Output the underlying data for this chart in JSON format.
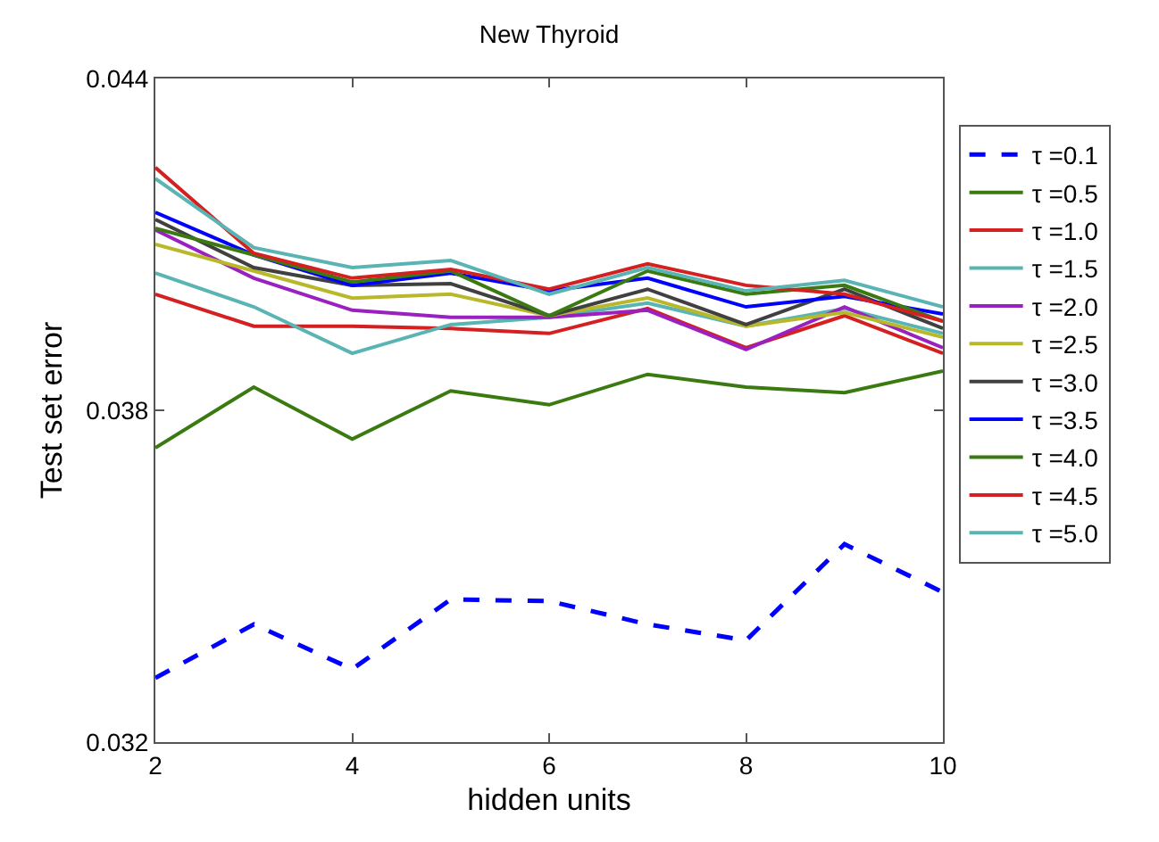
{
  "chart_data": {
    "type": "line",
    "title": "New Thyroid",
    "xlabel": "hidden units",
    "ylabel": "Test set error",
    "x": [
      2,
      3,
      4,
      5,
      6,
      7,
      8,
      9,
      10
    ],
    "xlim": [
      2,
      10
    ],
    "xticks": [
      2,
      4,
      6,
      8,
      10
    ],
    "ylim": [
      0.032,
      0.044
    ],
    "yticks": [
      0.032,
      0.038,
      0.044
    ],
    "legend": "right",
    "marker": "none",
    "series": [
      {
        "name": "τ =0.1",
        "color": "#0000ff",
        "line_style": "dashed",
        "values": [
          0.03316,
          0.03413,
          0.03332,
          0.03458,
          0.03455,
          0.03413,
          0.03384,
          0.03558,
          0.03471
        ]
      },
      {
        "name": "τ =0.5",
        "color": "#3a7a10",
        "values": [
          0.03732,
          0.03842,
          0.03748,
          0.03835,
          0.0381,
          0.03865,
          0.03842,
          0.03832,
          0.03871
        ]
      },
      {
        "name": "τ =1.0",
        "color": "#d42020",
        "values": [
          0.0401,
          0.03952,
          0.03952,
          0.03948,
          0.03939,
          0.03984,
          0.03913,
          0.03971,
          0.03903
        ]
      },
      {
        "name": "τ =1.5",
        "color": "#5ab4b4",
        "values": [
          0.04048,
          0.03987,
          0.03903,
          0.03955,
          0.03968,
          0.03994,
          0.03952,
          0.03984,
          0.03939
        ]
      },
      {
        "name": "τ =2.0",
        "color": "#9a20c0",
        "values": [
          0.04126,
          0.04039,
          0.03981,
          0.03968,
          0.03968,
          0.03981,
          0.0391,
          0.03987,
          0.03913
        ]
      },
      {
        "name": "τ =2.5",
        "color": "#b8b82a",
        "values": [
          0.041,
          0.04052,
          0.04003,
          0.0401,
          0.03971,
          0.04003,
          0.03952,
          0.03977,
          0.03932
        ]
      },
      {
        "name": "τ =3.0",
        "color": "#404040",
        "values": [
          0.04145,
          0.04058,
          0.04026,
          0.04029,
          0.03971,
          0.04019,
          0.03955,
          0.04019,
          0.03948
        ]
      },
      {
        "name": "τ =3.5",
        "color": "#0000ff",
        "values": [
          0.04158,
          0.04081,
          0.04026,
          0.04048,
          0.04016,
          0.04039,
          0.03987,
          0.04006,
          0.03974
        ]
      },
      {
        "name": "τ =4.0",
        "color": "#3a7a10",
        "values": [
          0.04129,
          0.04081,
          0.04032,
          0.04052,
          0.03971,
          0.04052,
          0.0401,
          0.04026,
          0.03961
        ]
      },
      {
        "name": "τ =4.5",
        "color": "#d42020",
        "values": [
          0.04239,
          0.04084,
          0.04039,
          0.04055,
          0.04019,
          0.04065,
          0.04026,
          0.0401,
          0.03961
        ]
      },
      {
        "name": "τ =5.0",
        "color": "#5ab4b4",
        "values": [
          0.04219,
          0.04094,
          0.04058,
          0.04071,
          0.0401,
          0.04058,
          0.04016,
          0.04035,
          0.03987
        ]
      }
    ]
  }
}
